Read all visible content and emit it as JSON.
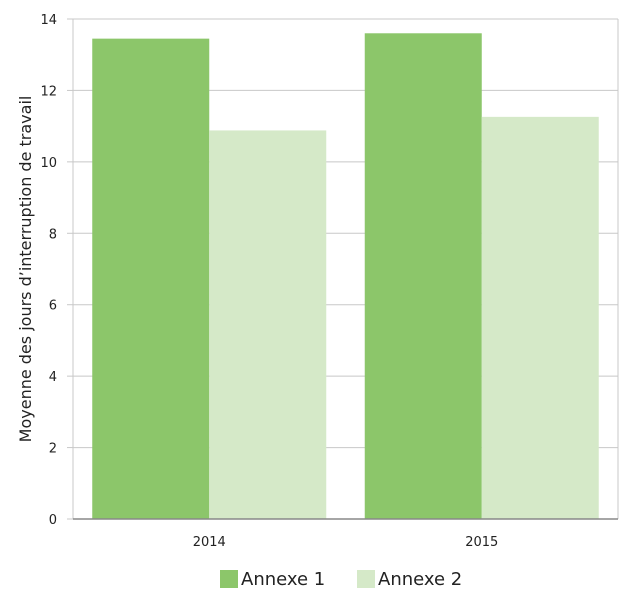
{
  "chart_data": {
    "type": "bar",
    "categories": [
      "2014",
      "2015"
    ],
    "series": [
      {
        "name": "Annexe 1",
        "values": [
          13.45,
          13.6
        ],
        "color": "#8cc66a"
      },
      {
        "name": "Annexe 2",
        "values": [
          10.88,
          11.26
        ],
        "color": "#d5e9c8"
      }
    ],
    "title": "",
    "xlabel": "",
    "ylabel": "Moyenne des jours d’interruption de travail",
    "ylim": [
      0,
      14
    ],
    "yticks": [
      0,
      2,
      4,
      6,
      8,
      10,
      12,
      14
    ],
    "grid": true,
    "legend_position": "bottom",
    "colors": {
      "grid": "#c8c8c8",
      "axis": "#888888"
    }
  }
}
